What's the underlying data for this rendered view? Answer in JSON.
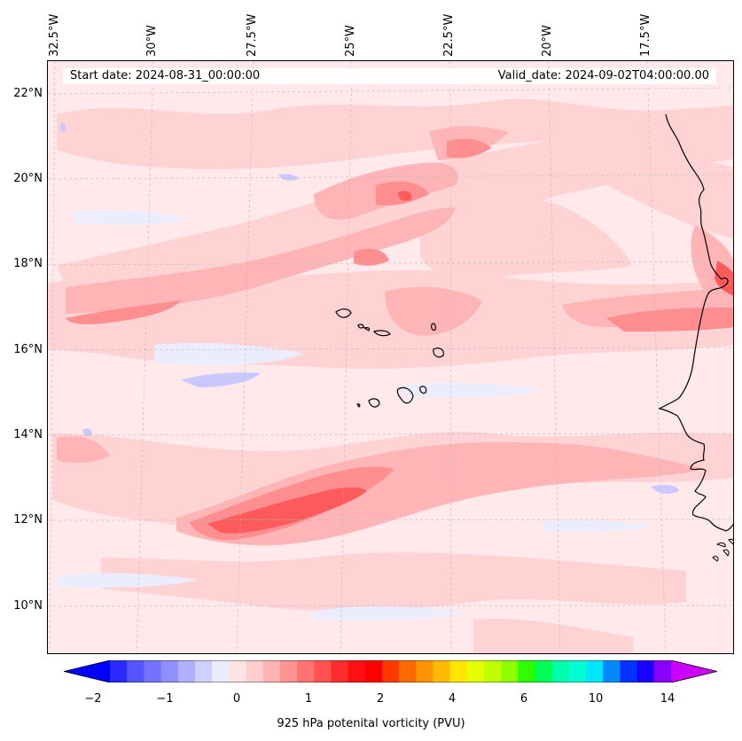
{
  "header": {
    "start_date": "Start date: 2024-08-31_00:00:00",
    "valid_date": "Valid_date: 2024-09-02T04:00:00.00"
  },
  "map": {
    "longitude_labels": [
      "32.5°W",
      "30°W",
      "27.5°W",
      "25°W",
      "22.5°W",
      "20°W",
      "17.5°W"
    ],
    "latitude_labels": [
      "22°N",
      "20°N",
      "18°N",
      "16°N",
      "14°N",
      "12°N",
      "10°N"
    ],
    "region": "Cape Verde Islands and West African coast"
  },
  "colorbar": {
    "tick_labels": [
      "−2",
      "−1",
      "0",
      "1",
      "2",
      "4",
      "6",
      "10",
      "14"
    ],
    "label": "925 hPa potenital vorticity (PVU)",
    "colors": [
      "#0000ff",
      "#2a2aff",
      "#5555ff",
      "#7373ff",
      "#8f8fff",
      "#b0b0ff",
      "#d0d0ff",
      "#ececff",
      "#ffe3e4",
      "#ffcfd0",
      "#ffb2b3",
      "#ff9393",
      "#ff7373",
      "#ff5252",
      "#ff2d2d",
      "#ff1111",
      "#ff0000",
      "#ff3a00",
      "#ff6a00",
      "#ff9400",
      "#ffbb00",
      "#ffe600",
      "#e6ff00",
      "#bfff00",
      "#8cff00",
      "#2bff00",
      "#00ff55",
      "#00ffaa",
      "#00ffd4",
      "#00e6ff",
      "#0088ff",
      "#0033ff",
      "#1a00ff",
      "#8800ff",
      "#cc00ff"
    ]
  }
}
